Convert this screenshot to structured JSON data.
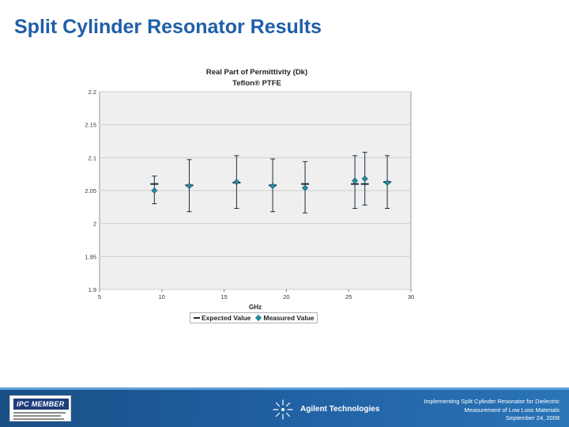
{
  "slide": {
    "title": "Split Cylinder Resonator Results"
  },
  "chart_data": {
    "type": "scatter",
    "title": "Real Part of Permittivity (Dk)",
    "subtitle": "Teflon® PTFE",
    "xlabel": "GHz",
    "ylabel": "",
    "xlim": [
      5,
      30
    ],
    "ylim": [
      1.9,
      2.2
    ],
    "x_ticks": [
      "5",
      "10",
      "15",
      "20",
      "25",
      "30"
    ],
    "y_ticks": [
      "1.9",
      "1.95",
      "2",
      "2.05",
      "2.1",
      "2.15",
      "2.2"
    ],
    "grid": "horizontal",
    "legend_position": "bottom",
    "series": [
      {
        "name": "Expected Value",
        "marker": "dash",
        "color": "#1a2e40",
        "x": [
          9.4,
          12.2,
          16.0,
          18.9,
          21.5,
          25.5,
          26.3,
          28.1
        ],
        "y": [
          2.06,
          2.058,
          2.062,
          2.058,
          2.06,
          2.06,
          2.06,
          2.063
        ],
        "error_low": [
          2.03,
          2.018,
          2.023,
          2.018,
          2.016,
          2.023,
          2.028,
          2.023
        ],
        "error_high": [
          2.072,
          2.097,
          2.103,
          2.098,
          2.094,
          2.103,
          2.108,
          2.103
        ]
      },
      {
        "name": "Measured Value",
        "marker": "diamond",
        "color": "#2a8aa0",
        "x": [
          9.4,
          12.2,
          16.0,
          18.9,
          21.5,
          25.5,
          26.3,
          28.1
        ],
        "y": [
          2.05,
          2.057,
          2.063,
          2.057,
          2.054,
          2.065,
          2.068,
          2.062
        ]
      }
    ]
  },
  "footer": {
    "logo_text": "IPC MEMBER",
    "company": "Agilent Technologies",
    "lines": [
      "Implementing Split Cylinder Resonator for Dielectric",
      "Measurement of Low Loss Materials",
      "September 24, 2008"
    ]
  },
  "colors": {
    "title": "#1f5fa8",
    "footer": "#1f5fa0",
    "plot_background": "#efefef"
  }
}
